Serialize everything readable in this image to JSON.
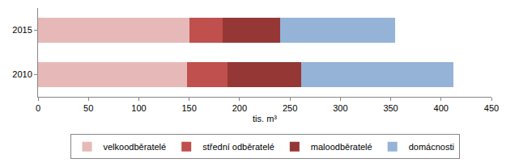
{
  "chart_data": {
    "type": "bar",
    "orientation": "horizontal",
    "stacked": true,
    "categories": [
      "2010",
      "2015"
    ],
    "series": [
      {
        "name": "velkoodběratelé",
        "color": "#e6b9b8",
        "values": [
          148,
          150
        ]
      },
      {
        "name": "střední odběratelé",
        "color": "#c0504d",
        "values": [
          40,
          33
        ]
      },
      {
        "name": "maloodběratelé",
        "color": "#953735",
        "values": [
          73,
          57
        ]
      },
      {
        "name": "domácnosti",
        "color": "#95b3d7",
        "values": [
          151,
          114
        ]
      }
    ],
    "x_label": "tis. m³",
    "xlim": [
      0,
      450
    ],
    "xticks": [
      0,
      50,
      100,
      150,
      200,
      250,
      300,
      350,
      400,
      450
    ],
    "grid": false,
    "legend": "bottom"
  }
}
